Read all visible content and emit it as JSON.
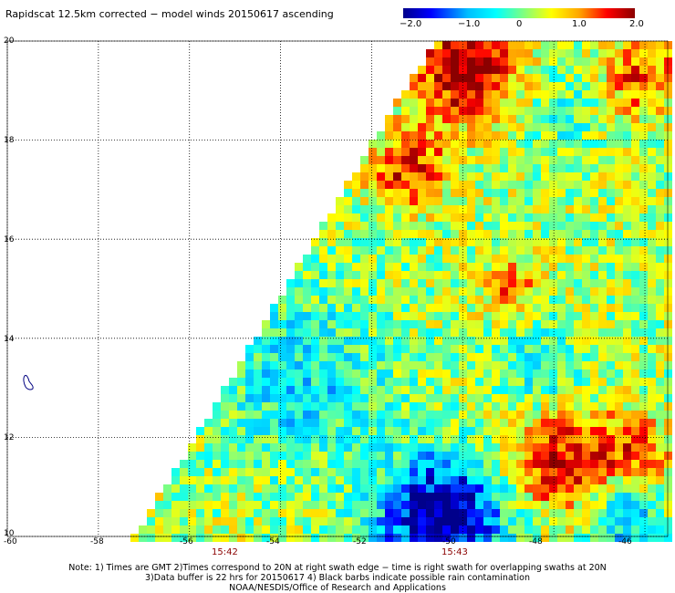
{
  "title": "Rapidscat 12.5km corrected − model winds 20150617 ascending",
  "colorbar": {
    "labels": [
      "−2.0",
      "−1.0",
      "0",
      "1.0",
      "2.0"
    ],
    "range": [
      -2.0,
      2.0
    ]
  },
  "axes": {
    "lon_ticks": [
      "-60",
      "-58",
      "-56",
      "-54",
      "-52",
      "-50",
      "-48",
      "-46"
    ],
    "lat_ticks": [
      "20",
      "18",
      "16",
      "14",
      "12",
      "10"
    ],
    "lon_range": [
      -60,
      -45.5
    ],
    "lat_range": [
      10,
      20
    ]
  },
  "times": [
    "15:42",
    "15:43"
  ],
  "notes": [
    "Note: 1) Times are GMT 2)Times correspond to 20N at right swath edge − time is right swath for overlapping swaths at 20N",
    "3)Data buffer is 22 hrs for 20150617 4) Black barbs indicate possible rain contamination",
    "NOAA/NESDIS/Office of Research and Applications"
  ],
  "colors": {
    "grid": "#000000",
    "time_label": "#8b0000",
    "scale": [
      "#00008b",
      "#0000ff",
      "#00bfff",
      "#00ffff",
      "#7fff7f",
      "#ffff00",
      "#ffa500",
      "#ff0000",
      "#8b0000"
    ]
  }
}
